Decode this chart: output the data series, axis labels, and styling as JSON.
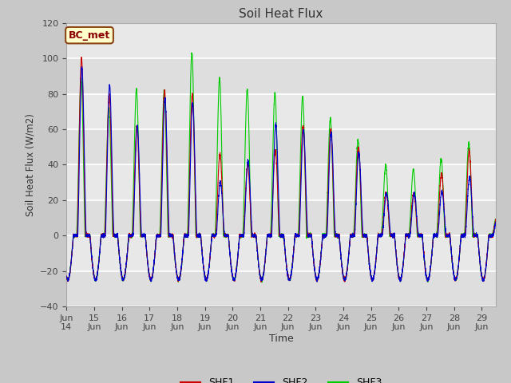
{
  "title": "Soil Heat Flux",
  "ylabel": "Soil Heat Flux (W/m2)",
  "xlabel": "Time",
  "ylim": [
    -40,
    120
  ],
  "fig_bg_color": "#c8c8c8",
  "plot_bg_color": "#e8e8e8",
  "annotation_text": "BC_met",
  "annotation_dark_red": "#8B0000",
  "annotation_bg": "#ffffcc",
  "annotation_border": "#8B4513",
  "shf1_color": "#cc0000",
  "shf2_color": "#0000cc",
  "shf3_color": "#00cc00",
  "xtick_labels": [
    "Jun 14",
    "Jun 15",
    "Jun 16",
    "Jun 17",
    "Jun 18",
    "Jun 19",
    "Jun 20",
    "Jun 21",
    "Jun 22",
    "Jun 23",
    "Jun 24",
    "Jun 25",
    "Jun 26",
    "Jun 27",
    "Jun 28",
    "Jun 29"
  ],
  "ytick_values": [
    -40,
    -20,
    0,
    20,
    40,
    60,
    80,
    100,
    120
  ],
  "day_peaks_shf1": [
    100,
    80,
    62,
    82,
    80,
    46,
    40,
    48,
    62,
    60,
    50,
    24,
    24,
    35,
    48,
    10
  ],
  "day_peaks_shf2": [
    95,
    85,
    62,
    78,
    75,
    30,
    42,
    63,
    60,
    58,
    47,
    24,
    24,
    25,
    33,
    10
  ],
  "day_peaks_shf3": [
    90,
    73,
    84,
    83,
    105,
    90,
    84,
    82,
    80,
    67,
    55,
    40,
    38,
    44,
    53,
    10
  ],
  "night_min": -25,
  "n_days": 15.5
}
